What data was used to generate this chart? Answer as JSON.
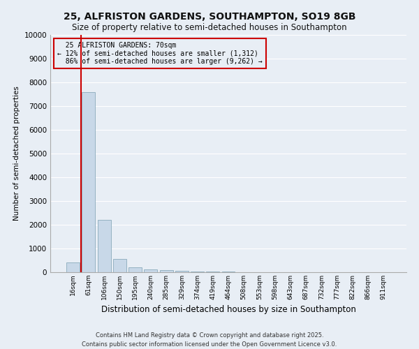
{
  "title_line1": "25, ALFRISTON GARDENS, SOUTHAMPTON, SO19 8GB",
  "title_line2": "Size of property relative to semi-detached houses in Southampton",
  "xlabel": "Distribution of semi-detached houses by size in Southampton",
  "ylabel": "Number of semi-detached properties",
  "property_label": "25 ALFRISTON GARDENS: 70sqm",
  "smaller_pct": "12%",
  "smaller_count": "1,312",
  "larger_pct": "86%",
  "larger_count": "9,262",
  "bin_labels": [
    "16sqm",
    "61sqm",
    "106sqm",
    "150sqm",
    "195sqm",
    "240sqm",
    "285sqm",
    "329sqm",
    "374sqm",
    "419sqm",
    "464sqm",
    "508sqm",
    "553sqm",
    "598sqm",
    "643sqm",
    "687sqm",
    "732sqm",
    "777sqm",
    "822sqm",
    "866sqm",
    "911sqm"
  ],
  "bin_values": [
    400,
    7600,
    2200,
    550,
    200,
    120,
    80,
    50,
    30,
    20,
    15,
    10,
    8,
    6,
    5,
    4,
    3,
    3,
    2,
    2,
    2
  ],
  "bar_color": "#c8d8e8",
  "bar_edge_color": "#8aaabb",
  "vline_color": "#cc0000",
  "vline_x": 0.5,
  "annotation_box_color": "#cc0000",
  "background_color": "#e8eef5",
  "grid_color": "#ffffff",
  "ylim": [
    0,
    10000
  ],
  "yticks": [
    0,
    1000,
    2000,
    3000,
    4000,
    5000,
    6000,
    7000,
    8000,
    9000,
    10000
  ],
  "footer_line1": "Contains HM Land Registry data © Crown copyright and database right 2025.",
  "footer_line2": "Contains public sector information licensed under the Open Government Licence v3.0."
}
